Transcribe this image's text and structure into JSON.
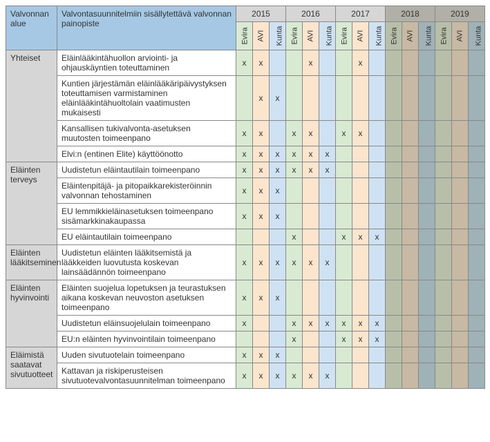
{
  "columns": {
    "area_header": "Valvonnan alue",
    "desc_header": "Valvontasuunnitelmiin sisällytettävä valvonnan painopiste",
    "years": [
      "2015",
      "2016",
      "2017",
      "2018",
      "2019"
    ],
    "subs": [
      "Evira",
      "AVI",
      "Kunta"
    ],
    "sub_colors": {
      "active": [
        "#d9ead3",
        "#fce5cd",
        "#cfe2f3"
      ],
      "inactive": [
        "#b8bfa9",
        "#c7b9a3",
        "#9fb2b8"
      ]
    },
    "year_header_bg": {
      "active": "#d6d6d6",
      "inactive": "#b0b0a8"
    },
    "active_years": 3
  },
  "areas": [
    {
      "name": "Yhteiset",
      "rows": [
        {
          "desc": "Eläinlääkintähuollon arviointi- ja ohjauskäyntien toteuttaminen",
          "marks": [
            "x",
            "x",
            "",
            "",
            "x",
            "",
            "",
            "x",
            "",
            "",
            "",
            "",
            "",
            "",
            ""
          ]
        },
        {
          "desc": "Kuntien järjestämän eläinlääkäripäivystyksen toteuttamisen varmistaminen eläinlääkintähuoltolain vaatimusten mukaisesti",
          "marks": [
            "",
            "x",
            "x",
            "",
            "",
            "",
            "",
            "",
            "",
            "",
            "",
            "",
            "",
            "",
            ""
          ]
        },
        {
          "desc": "Kansallisen tukivalvonta-asetuksen muutosten toimeenpano",
          "marks": [
            "x",
            "x",
            "",
            "x",
            "x",
            "",
            "x",
            "x",
            "",
            "",
            "",
            "",
            "",
            "",
            ""
          ]
        },
        {
          "desc": "Elvi:n (entinen Elite) käyttöönotto",
          "marks": [
            "x",
            "x",
            "x",
            "x",
            "x",
            "x",
            "",
            "",
            "",
            "",
            "",
            "",
            "",
            "",
            ""
          ]
        }
      ]
    },
    {
      "name": "Eläinten terveys",
      "rows": [
        {
          "desc": "Uudistetun eläintautilain toimeenpano",
          "marks": [
            "x",
            "x",
            "x",
            "x",
            "x",
            "x",
            "",
            "",
            "",
            "",
            "",
            "",
            "",
            "",
            ""
          ]
        },
        {
          "desc": "Eläintenpitäjä- ja pitopaikkarekisteröinnin valvonnan tehostaminen",
          "marks": [
            "x",
            "x",
            "x",
            "",
            "",
            "",
            "",
            "",
            "",
            "",
            "",
            "",
            "",
            "",
            ""
          ]
        },
        {
          "desc": "EU lemmikkieläinasetuksen toimeenpano sisämarkkinakaupassa",
          "marks": [
            "x",
            "x",
            "x",
            "",
            "",
            "",
            "",
            "",
            "",
            "",
            "",
            "",
            "",
            "",
            ""
          ]
        },
        {
          "desc": "EU eläintautilain toimeenpano",
          "marks": [
            "",
            "",
            "",
            "x",
            "",
            "",
            "x",
            "x",
            "x",
            "",
            "",
            "",
            "",
            "",
            ""
          ]
        }
      ]
    },
    {
      "name": "Eläinten lääkitseminen",
      "rows": [
        {
          "desc": "Uudistetun eläinten lääkitsemistä ja lääkkeiden luovutusta koskevan lainsäädännön toimeenpano",
          "marks": [
            "x",
            "x",
            "x",
            "x",
            "x",
            "x",
            "",
            "",
            "",
            "",
            "",
            "",
            "",
            "",
            ""
          ]
        }
      ]
    },
    {
      "name": "Eläinten hyvinvointi",
      "rows": [
        {
          "desc": "Eläinten suojelua lopetuksen ja teurastuksen aikana koskevan neuvoston asetuksen toimeenpano",
          "marks": [
            "x",
            "x",
            "x",
            "",
            "",
            "",
            "",
            "",
            "",
            "",
            "",
            "",
            "",
            "",
            ""
          ]
        },
        {
          "desc": "Uudistetun eläinsuojelulain toimeenpano",
          "marks": [
            "x",
            "",
            "",
            "x",
            "x",
            "x",
            "x",
            "x",
            "x",
            "",
            "",
            "",
            "",
            "",
            ""
          ]
        },
        {
          "desc": "EU:n eläinten hyvinvointilain toimeenpano",
          "marks": [
            "",
            "",
            "",
            "x",
            "",
            "",
            "x",
            "x",
            "x",
            "",
            "",
            "",
            "",
            "",
            ""
          ]
        }
      ]
    },
    {
      "name": "Eläimistä saatavat sivutuotteet",
      "rows": [
        {
          "desc": "Uuden sivutuotelain toimeenpano",
          "marks": [
            "x",
            "x",
            "x",
            "",
            "",
            "",
            "",
            "",
            "",
            "",
            "",
            "",
            "",
            "",
            ""
          ]
        },
        {
          "desc": "Kattavan ja riskiperusteisen sivutuotevalvontasuunnitelman toimeenpano",
          "marks": [
            "x",
            "x",
            "x",
            "x",
            "x",
            "x",
            "",
            "",
            "",
            "",
            "",
            "",
            "",
            "",
            ""
          ]
        }
      ]
    }
  ]
}
